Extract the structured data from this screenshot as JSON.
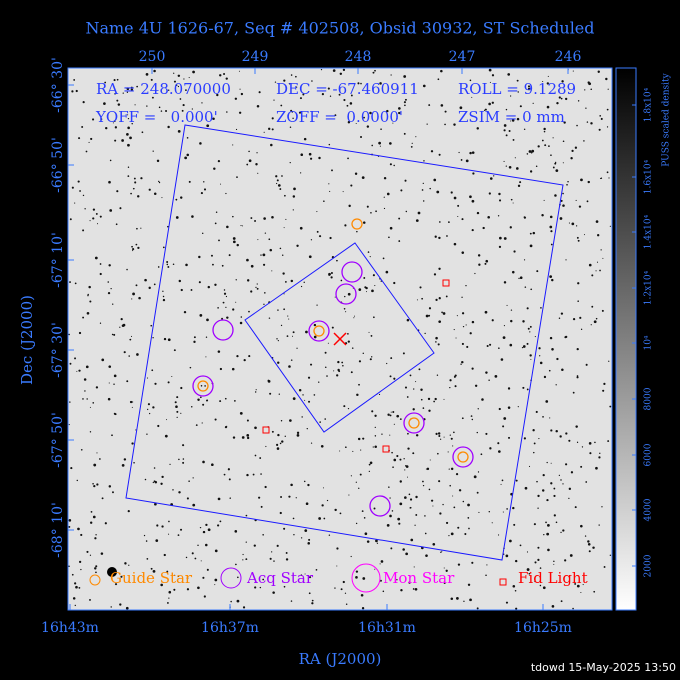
{
  "title": "Name 4U 1626-67, Seq # 402508, Obsid 30932, ST Scheduled",
  "info": {
    "ra": "RA = 248.070000",
    "dec": "DEC = -67.460911",
    "roll": "ROLL = 9.1289",
    "yoff": "YOFF =   0.000'",
    "zoff": "ZOFF =  0.0000'",
    "zsim": "ZSIM = 0 mm"
  },
  "top_axis": [
    "250",
    "249",
    "248",
    "247",
    "246"
  ],
  "left_axis": [
    "-66° 30'",
    "-66° 50'",
    "-67° 10'",
    "-67° 30'",
    "-67° 50'",
    "-68° 10'"
  ],
  "bottom_axis": [
    "16h43m",
    "16h37m",
    "16h31m",
    "16h25m"
  ],
  "x_label": "RA (J2000)",
  "y_label": "Dec (J2000)",
  "legend": [
    "Guide Star",
    "Acq Star",
    "Mon Star",
    "Fid Light"
  ],
  "colorbar": {
    "label": "PUSS scaled density",
    "ticks": [
      "2000",
      "4000",
      "6000",
      "8000",
      "10⁴",
      "1.2x10⁴",
      "1.4x10⁴",
      "1.6x10⁴",
      "1.8x10⁴"
    ]
  },
  "footer": "tdowd 15-May-2025 13:50"
}
